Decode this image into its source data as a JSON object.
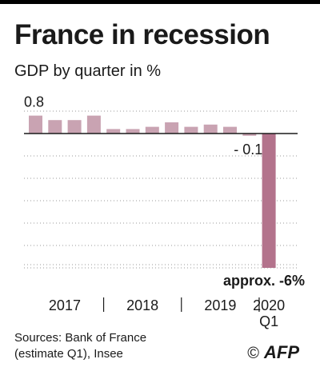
{
  "title": "France in recession",
  "subtitle": "GDP by quarter in %",
  "source": {
    "line1": "Sources: Bank of France",
    "line2": "(estimate Q1), Insee"
  },
  "logo": {
    "symbol": "©",
    "text": "AFP"
  },
  "chart_data": {
    "type": "bar",
    "title": "France in recession",
    "subtitle": "GDP by quarter in %",
    "xlabel": "",
    "ylabel": "",
    "categories": [
      "2017 Q1",
      "2017 Q2",
      "2017 Q3",
      "2017 Q4",
      "2018 Q1",
      "2018 Q2",
      "2018 Q3",
      "2018 Q4",
      "2019 Q1",
      "2019 Q2",
      "2019 Q3",
      "2019 Q4",
      "2020 Q1"
    ],
    "values": [
      0.8,
      0.6,
      0.6,
      0.8,
      0.2,
      0.2,
      0.3,
      0.5,
      0.3,
      0.4,
      0.3,
      -0.1,
      -6
    ],
    "ylim": [
      -6.0,
      1.6
    ],
    "grid": true,
    "bar_color": "#c9a3b2",
    "highlight_color": "#b3738c",
    "annotations": [
      {
        "index": 0,
        "text": "0.8"
      },
      {
        "index": 11,
        "text": "- 0.1"
      },
      {
        "index": 12,
        "text": "approx. -6%"
      }
    ],
    "x_groups": [
      {
        "label": "2017",
        "start": 0,
        "end": 3
      },
      {
        "label": "2018",
        "start": 4,
        "end": 7
      },
      {
        "label": "2019",
        "start": 8,
        "end": 11
      },
      {
        "label": "2020",
        "sublabel": "Q1",
        "start": 12,
        "end": 12
      }
    ]
  }
}
